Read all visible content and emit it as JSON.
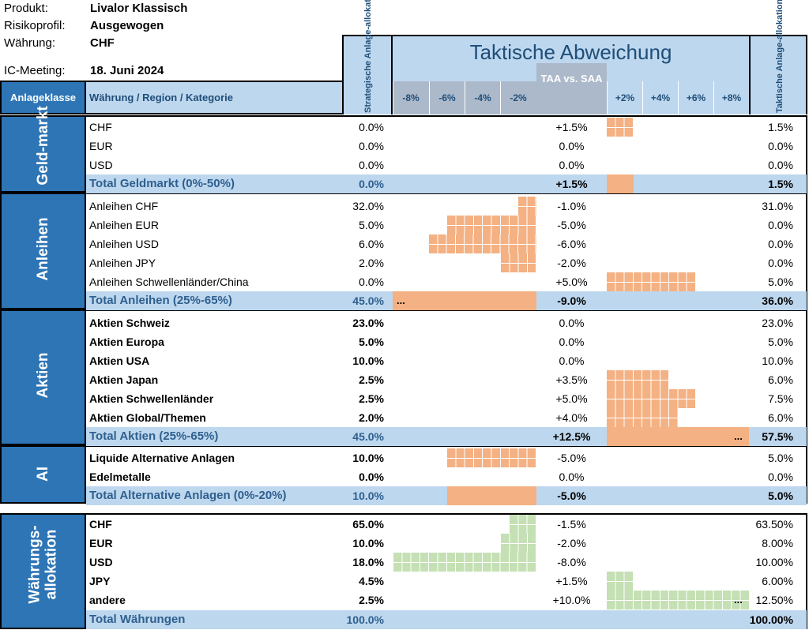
{
  "meta": {
    "product_label": "Produkt:",
    "product_value": "Livalor Klassisch",
    "risk_label": "Risikoprofil:",
    "risk_value": "Ausgewogen",
    "currency_label": "Währung:",
    "currency_value": "CHF",
    "ic_label": "IC-Meeting:",
    "ic_value": "18. Juni 2024"
  },
  "header": {
    "asset_class": "Anlageklasse",
    "category": "Währung / Region / Kategorie",
    "saa": "Strategische Anlage-allokation",
    "title": "Taktische Abweichung",
    "taa_vs_saa": "TAA vs. SAA",
    "taa": "Taktische Anlage-allokation",
    "ticks_neg": [
      "-8%",
      "-6%",
      "-4%",
      "-2%"
    ],
    "ticks_pos": [
      "+2%",
      "+4%",
      "+6%",
      "+8%"
    ]
  },
  "colors": {
    "header_bg": "#bdd7ee",
    "header_mid": "#acb9ca",
    "group_bg": "#2e75b6",
    "positive_bar": "#f4b183",
    "currency_bar": "#c5e0b4",
    "total_text": "#2e5f8e"
  },
  "groups": [
    {
      "label": "Geld-markt"
    },
    {
      "label": "Anleihen"
    },
    {
      "label": "Aktien"
    },
    {
      "label": "AI"
    },
    {
      "label": "Währungs-allokation"
    }
  ],
  "rows": [
    {
      "name": "CHF",
      "saa": "0.0%",
      "dev": "+1.5%",
      "taa": "1.5%",
      "dev_value": 1.5
    },
    {
      "name": "EUR",
      "saa": "0.0%",
      "dev": "0.0%",
      "taa": "0.0%",
      "dev_value": 0
    },
    {
      "name": "USD",
      "saa": "0.0%",
      "dev": "0.0%",
      "taa": "0.0%",
      "dev_value": 0
    },
    {
      "name": "Total Geldmarkt (0%-50%)",
      "saa": "0.0%",
      "dev": "+1.5%",
      "taa": "1.5%",
      "dev_value": 1.5,
      "total": true
    },
    {
      "name": "Anleihen CHF",
      "saa": "32.0%",
      "dev": "-1.0%",
      "taa": "31.0%",
      "dev_value": -1
    },
    {
      "name": "Anleihen EUR",
      "saa": "5.0%",
      "dev": "-5.0%",
      "taa": "0.0%",
      "dev_value": -5
    },
    {
      "name": "Anleihen USD",
      "saa": "6.0%",
      "dev": "-6.0%",
      "taa": "0.0%",
      "dev_value": -6
    },
    {
      "name": "Anleihen JPY",
      "saa": "2.0%",
      "dev": "-2.0%",
      "taa": "0.0%",
      "dev_value": -2
    },
    {
      "name": "Anleihen Schwellenländer/China",
      "saa": "0.0%",
      "dev": "+5.0%",
      "taa": "5.0%",
      "dev_value": 5
    },
    {
      "name": "Total Anleihen (25%-65%)",
      "saa": "45.0%",
      "dev": "-9.0%",
      "taa": "36.0%",
      "dev_value": -9,
      "total": true,
      "overflow": "..."
    },
    {
      "name": "Aktien Schweiz",
      "saa": "23.0%",
      "dev": "0.0%",
      "taa": "23.0%",
      "dev_value": 0
    },
    {
      "name": "Aktien Europa",
      "saa": "5.0%",
      "dev": "0.0%",
      "taa": "5.0%",
      "dev_value": 0
    },
    {
      "name": "Aktien USA",
      "saa": "10.0%",
      "dev": "0.0%",
      "taa": "10.0%",
      "dev_value": 0
    },
    {
      "name": "Aktien Japan",
      "saa": "2.5%",
      "dev": "+3.5%",
      "taa": "6.0%",
      "dev_value": 3.5
    },
    {
      "name": "Aktien Schwellenländer",
      "saa": "2.5%",
      "dev": "+5.0%",
      "taa": "7.5%",
      "dev_value": 5
    },
    {
      "name": "Aktien Global/Themen",
      "saa": "2.0%",
      "dev": "+4.0%",
      "taa": "6.0%",
      "dev_value": 4
    },
    {
      "name": "Total Aktien (25%-65%)",
      "saa": "45.0%",
      "dev": "+12.5%",
      "taa": "57.5%",
      "dev_value": 12.5,
      "total": true,
      "overflow": "..."
    },
    {
      "name": "Liquide Alternative Anlagen",
      "saa": "10.0%",
      "dev": "-5.0%",
      "taa": "5.0%",
      "dev_value": -5
    },
    {
      "name": "Edelmetalle",
      "saa": "0.0%",
      "dev": "0.0%",
      "taa": "0.0%",
      "dev_value": 0
    },
    {
      "name": "Total Alternative Anlagen (0%-20%)",
      "saa": "10.0%",
      "dev": "-5.0%",
      "taa": "5.0%",
      "dev_value": -5,
      "total": true
    },
    {
      "name": "CHF",
      "saa": "65.0%",
      "dev": "-1.5%",
      "taa": "63.50%",
      "dev_value": -1.5
    },
    {
      "name": "EUR",
      "saa": "10.0%",
      "dev": "-2.0%",
      "taa": "8.00%",
      "dev_value": -2
    },
    {
      "name": "USD",
      "saa": "18.0%",
      "dev": "-8.0%",
      "taa": "10.00%",
      "dev_value": -8
    },
    {
      "name": "JPY",
      "saa": "4.5%",
      "dev": "+1.5%",
      "taa": "6.00%",
      "dev_value": 1.5
    },
    {
      "name": "andere",
      "saa": "2.5%",
      "dev": "+10.0%",
      "taa": "12.50%",
      "dev_value": 10,
      "overflow": "..."
    },
    {
      "name": "Total Währungen",
      "saa": "100.0%",
      "dev": "",
      "taa": "100.00%",
      "total": true
    }
  ]
}
